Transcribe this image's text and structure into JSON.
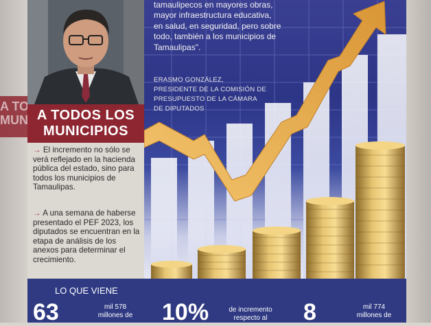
{
  "edge_left_text": "A TODOS\nMUNICI",
  "heading": {
    "line1": "A TODOS LOS",
    "line2": "MUNICIPIOS"
  },
  "bullets": [
    {
      "arrow": "→",
      "text": "El incremento no sólo se verá reflejado en la hacienda pública del estado, sino para todos los municipios de Tamaulipas."
    },
    {
      "arrow": "→",
      "text": "A una semana de haberse presentado el PEF 2023, los diputados se encuentran en la etapa de análisis de los anexos para determinar el crecimiento."
    }
  ],
  "quote": {
    "lines": [
      "tamaulipecos en mayores obras,",
      "mayor infraestructura educativa,",
      "en salud, en seguridad, pero sobre",
      "todo, también a los municipios de",
      "Tamaulipas\"."
    ]
  },
  "author": {
    "lines": [
      "ERASMO GONZÁLEZ,",
      "PRESIDENTE DE LA COMISIÓN DE",
      "PRESUPUESTO DE LA CÁMARA",
      "DE DIPUTADOS"
    ]
  },
  "bottom": {
    "label": "LO QUE VIENE",
    "stat1": {
      "big": "63",
      "small1": "mil 578",
      "small2": "millones de"
    },
    "stat2": {
      "big": "10%",
      "small1": "de incremento",
      "small2": "respecto al"
    },
    "stat3": {
      "big": "8",
      "small1": "mil 774",
      "small2": "millones de"
    }
  },
  "colors": {
    "accent_red": "#8e2631",
    "bar_blue": "#2f3a82",
    "arrow_gold": "#e7b35a"
  }
}
